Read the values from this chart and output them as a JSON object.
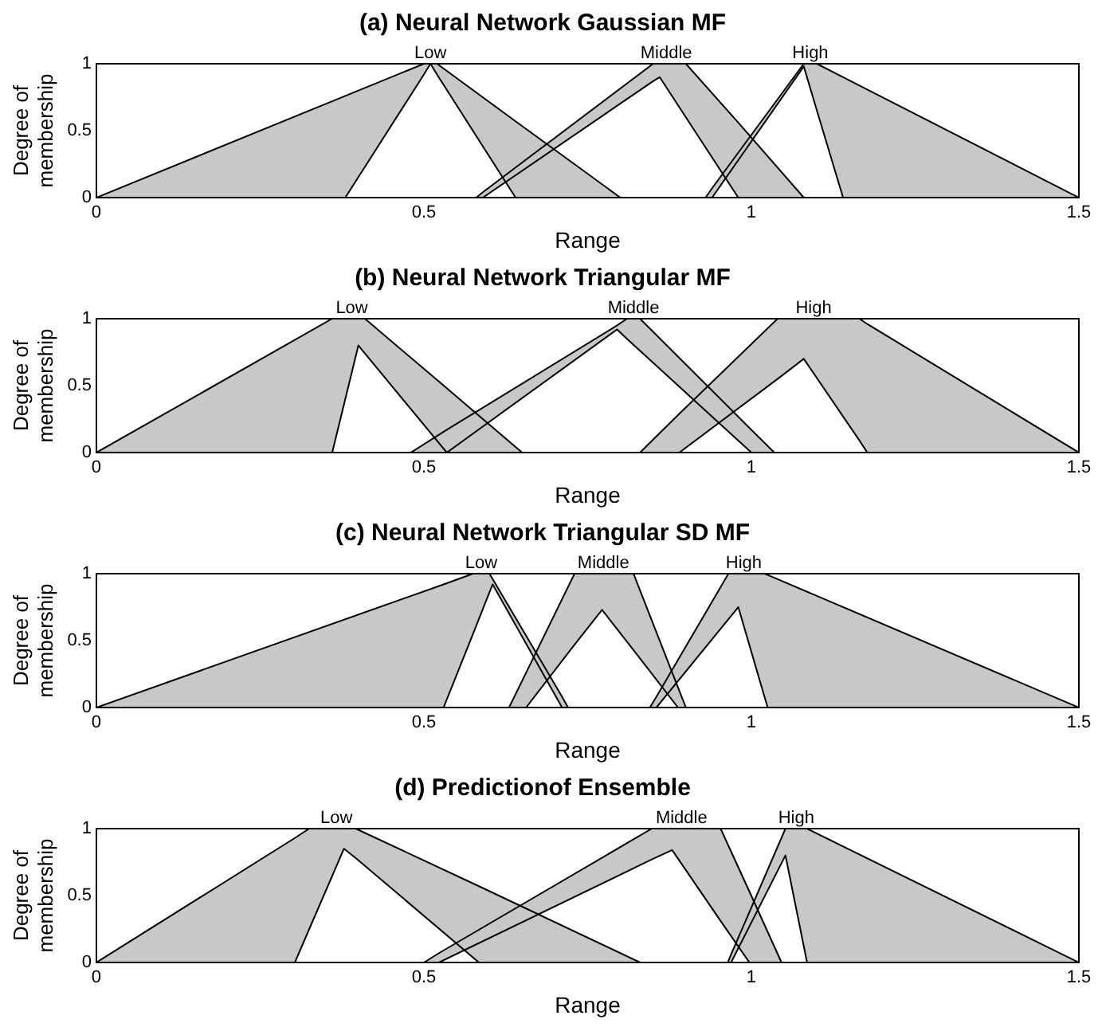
{
  "chart_data": [
    {
      "type": "line",
      "title": "(a) Neural Network Gaussian MF",
      "xlabel": "Range",
      "ylabel": "Degree of membership",
      "xlim": [
        0,
        1.5
      ],
      "ylim": [
        0,
        1
      ],
      "xticks": [
        0,
        0.5,
        1,
        1.5
      ],
      "yticks": [
        0,
        0.5,
        1
      ],
      "series": [
        {
          "name": "Low",
          "color": "#000000",
          "x": [
            0,
            0.38,
            0.5,
            0.51,
            0.52,
            0.64,
            0.8
          ],
          "values": [
            0,
            0.76,
            1,
            1,
            1,
            0.57,
            0
          ],
          "upper": [
            0,
            0.76,
            1,
            1,
            1,
            0.57,
            0
          ],
          "lower": [
            0,
            0,
            0.92,
            1,
            0.92,
            0,
            0
          ]
        },
        {
          "color": "#000000",
          "x": [
            0,
            0.38,
            0.5,
            0.51,
            0.52,
            0.64,
            0.8
          ],
          "values": [
            0,
            0,
            0.92,
            1,
            0.92,
            0,
            0
          ]
        },
        {
          "name": "Middle",
          "color": "#000000",
          "x": [
            0.58,
            0.59,
            0.85,
            0.86,
            0.9,
            0.98,
            1.08
          ],
          "values": [
            0,
            0.04,
            1,
            1,
            1,
            0.56,
            0
          ],
          "upper": [
            0,
            0.04,
            1,
            1,
            1,
            0.56,
            0
          ],
          "lower": [
            0,
            0,
            0.87,
            0.9,
            0.6,
            0,
            0
          ]
        },
        {
          "color": "#000000",
          "x": [
            0.58,
            0.59,
            0.85,
            0.86,
            0.9,
            0.98,
            1.08
          ],
          "values": [
            0,
            0,
            0.87,
            0.9,
            0.6,
            0,
            0
          ]
        },
        {
          "name": "High",
          "color": "#000000",
          "x": [
            0.93,
            0.94,
            1.08,
            1.1,
            1.14,
            1.5
          ],
          "values": [
            0,
            0.07,
            1,
            1,
            0.9,
            0
          ],
          "upper": [
            0,
            0.07,
            1,
            1,
            0.9,
            0
          ],
          "lower": [
            0,
            0,
            0.98,
            0.65,
            0,
            0
          ]
        },
        {
          "color": "#000000",
          "x": [
            0.93,
            0.94,
            1.08,
            1.1,
            1.14,
            1.5
          ],
          "values": [
            0,
            0,
            0.98,
            0.65,
            0,
            0
          ]
        }
      ]
    },
    {
      "type": "line",
      "title": "(b) Neural Network Triangular MF",
      "xlabel": "Range",
      "ylabel": "Degree of membership",
      "xlim": [
        0,
        1.5
      ],
      "ylim": [
        0,
        1
      ],
      "xticks": [
        0,
        0.5,
        1,
        1.5
      ],
      "yticks": [
        0,
        0.5,
        1
      ],
      "series": [
        {
          "name": "Low",
          "color": "#000000",
          "x": [
            0,
            0.36,
            0.4,
            0.41,
            0.535,
            0.65
          ],
          "values": [
            0,
            1,
            1,
            1,
            0.48,
            0
          ],
          "upper": [
            0,
            1,
            1,
            1,
            0.48,
            0
          ],
          "lower": [
            0,
            0,
            0.8,
            0.74,
            0,
            0
          ]
        },
        {
          "color": "#000000",
          "x": [
            0,
            0.36,
            0.4,
            0.41,
            0.535,
            0.65
          ],
          "values": [
            0,
            0,
            0.8,
            0.74,
            0,
            0
          ]
        },
        {
          "name": "Middle",
          "color": "#000000",
          "x": [
            0.48,
            0.535,
            0.795,
            0.81,
            0.83,
            1.0,
            1.035
          ],
          "values": [
            0,
            0.17,
            0.95,
            1,
            1,
            0.17,
            0
          ],
          "upper": [
            0,
            0.17,
            0.95,
            1,
            1,
            0.17,
            0
          ],
          "lower": [
            0,
            0,
            0.92,
            0.85,
            0.76,
            0,
            0
          ]
        },
        {
          "color": "#000000",
          "x": [
            0.48,
            0.535,
            0.795,
            0.81,
            0.83,
            1.0,
            1.035
          ],
          "values": [
            0,
            0,
            0.92,
            0.85,
            0.76,
            0,
            0
          ]
        },
        {
          "name": "High",
          "color": "#000000",
          "x": [
            0.83,
            0.89,
            1.04,
            1.08,
            1.165,
            1.177,
            1.5
          ],
          "values": [
            0,
            0.29,
            1,
            1,
            1,
            0.96,
            0
          ],
          "upper": [
            0,
            0.29,
            1,
            1,
            1,
            0.96,
            0
          ],
          "lower": [
            0,
            0,
            0.55,
            0.7,
            0.09,
            0,
            0
          ]
        },
        {
          "color": "#000000",
          "x": [
            0.83,
            0.89,
            1.04,
            1.08,
            1.165,
            1.177,
            1.5
          ],
          "values": [
            0,
            0,
            0.55,
            0.7,
            0.09,
            0,
            0
          ]
        }
      ]
    },
    {
      "type": "line",
      "title": "(c) Neural Network Triangular SD MF",
      "xlabel": "Range",
      "ylabel": "Degree of membership",
      "xlim": [
        0,
        1.5
      ],
      "ylim": [
        0,
        1
      ],
      "xticks": [
        0,
        0.5,
        1,
        1.5
      ],
      "yticks": [
        0,
        0.5,
        1
      ],
      "series": [
        {
          "name": "Low",
          "color": "#000000",
          "x": [
            0,
            0.53,
            0.575,
            0.6,
            0.605,
            0.711,
            0.72
          ],
          "values": [
            0,
            0.92,
            1,
            1,
            0.96,
            0.08,
            0
          ],
          "upper": [
            0,
            0.92,
            1,
            1,
            0.96,
            0.08,
            0
          ],
          "lower": [
            0,
            0,
            0.55,
            0.86,
            0.92,
            0,
            0
          ]
        },
        {
          "color": "#000000",
          "x": [
            0,
            0.53,
            0.575,
            0.6,
            0.605,
            0.711,
            0.72
          ],
          "values": [
            0,
            0,
            0.55,
            0.86,
            0.92,
            0,
            0
          ]
        },
        {
          "name": "Middle",
          "color": "#000000",
          "x": [
            0.63,
            0.656,
            0.73,
            0.772,
            0.82,
            0.888,
            0.9
          ],
          "values": [
            0,
            0.26,
            1,
            1,
            1,
            0.15,
            0
          ],
          "upper": [
            0,
            0.26,
            1,
            1,
            1,
            0.15,
            0
          ],
          "lower": [
            0,
            0,
            0.47,
            0.73,
            0.43,
            0,
            0
          ]
        },
        {
          "color": "#000000",
          "x": [
            0.63,
            0.656,
            0.73,
            0.772,
            0.82,
            0.888,
            0.9
          ],
          "values": [
            0,
            0,
            0.47,
            0.73,
            0.43,
            0,
            0
          ]
        },
        {
          "name": "High",
          "color": "#000000",
          "x": [
            0.845,
            0.855,
            0.965,
            0.98,
            1.02,
            1.025,
            1.5
          ],
          "values": [
            0,
            0.08,
            1,
            1,
            1,
            0.99,
            0
          ],
          "upper": [
            0,
            0.08,
            1,
            1,
            1,
            0.99,
            0
          ],
          "lower": [
            0,
            0,
            0.66,
            0.75,
            0.08,
            0,
            0
          ]
        },
        {
          "color": "#000000",
          "x": [
            0.845,
            0.855,
            0.965,
            0.98,
            1.02,
            1.025,
            1.5
          ],
          "values": [
            0,
            0,
            0.66,
            0.75,
            0.08,
            0,
            0
          ]
        }
      ]
    },
    {
      "type": "line",
      "title": "(d) Predictionof Ensemble",
      "xlabel": "Range",
      "ylabel": "Degree of membership",
      "xlim": [
        0,
        1.5
      ],
      "ylim": [
        0,
        1
      ],
      "xticks": [
        0,
        0.5,
        1,
        1.5
      ],
      "yticks": [
        0,
        0.5,
        1
      ],
      "series": [
        {
          "name": "Low",
          "color": "#000000",
          "x": [
            0,
            0.303,
            0.325,
            0.378,
            0.396,
            0.584,
            0.83
          ],
          "values": [
            0,
            0.93,
            1,
            1,
            1,
            0.57,
            0
          ],
          "upper": [
            0,
            0.93,
            1,
            1,
            1,
            0.57,
            0
          ],
          "lower": [
            0,
            0,
            0.25,
            0.85,
            0.78,
            0,
            0
          ]
        },
        {
          "color": "#000000",
          "x": [
            0,
            0.303,
            0.325,
            0.378,
            0.396,
            0.584,
            0.83
          ],
          "values": [
            0,
            0,
            0.25,
            0.85,
            0.78,
            0,
            0
          ]
        },
        {
          "name": "Middle",
          "color": "#000000",
          "x": [
            0.5,
            0.523,
            0.848,
            0.879,
            0.953,
            0.997,
            1.046
          ],
          "values": [
            0,
            0.07,
            1,
            1,
            1,
            0.53,
            0
          ],
          "upper": [
            0,
            0.07,
            1,
            1,
            1,
            0.53,
            0
          ],
          "lower": [
            0,
            0,
            0.77,
            0.84,
            0.31,
            0,
            0
          ]
        },
        {
          "color": "#000000",
          "x": [
            0.5,
            0.523,
            0.848,
            0.879,
            0.953,
            0.997,
            1.046
          ],
          "values": [
            0,
            0,
            0.77,
            0.84,
            0.31,
            0,
            0
          ]
        },
        {
          "name": "High",
          "color": "#000000",
          "x": [
            0.964,
            0.969,
            1.052,
            1.085,
            1.5
          ],
          "values": [
            0,
            0.06,
            1,
            1,
            0
          ],
          "upper": [
            0,
            0.06,
            1,
            1,
            0
          ],
          "lower": [
            0,
            0,
            0.8,
            0,
            0
          ]
        },
        {
          "color": "#000000",
          "x": [
            0.964,
            0.969,
            1.052,
            1.085,
            1.5
          ],
          "values": [
            0,
            0,
            0.8,
            0,
            0
          ]
        }
      ]
    }
  ]
}
